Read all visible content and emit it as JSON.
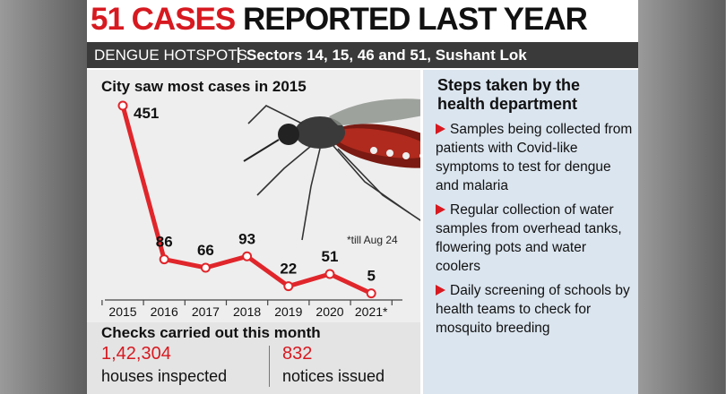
{
  "headline": {
    "highlight": "51 CASES",
    "rest": "REPORTED LAST YEAR"
  },
  "subheader": {
    "label": "DENGUE HOTSPOTS",
    "places": "Sectors 14, 15, 46 and 51, Sushant Lok"
  },
  "chart_data": {
    "type": "line",
    "title": "City saw most cases in 2015",
    "note": "*till Aug 24",
    "categories": [
      "2015",
      "2016",
      "2017",
      "2018",
      "2019",
      "2020",
      "2021*"
    ],
    "values": [
      451,
      86,
      66,
      93,
      22,
      51,
      5
    ],
    "color": "#e0262b"
  },
  "checks": {
    "title": "Checks carried out this month",
    "items": [
      {
        "number": "1,42,304",
        "label": "houses inspected"
      },
      {
        "number": "832",
        "label": "notices issued"
      }
    ]
  },
  "steps": {
    "title": "Steps taken by the health department",
    "items": [
      "Samples being collected from patients with Covid-like symptoms to test for dengue and malaria",
      "Regular collection of water samples from overhead tanks, flowering pots and water coolers",
      "Daily screening of schools by health teams to check for mosquito breeding"
    ]
  }
}
